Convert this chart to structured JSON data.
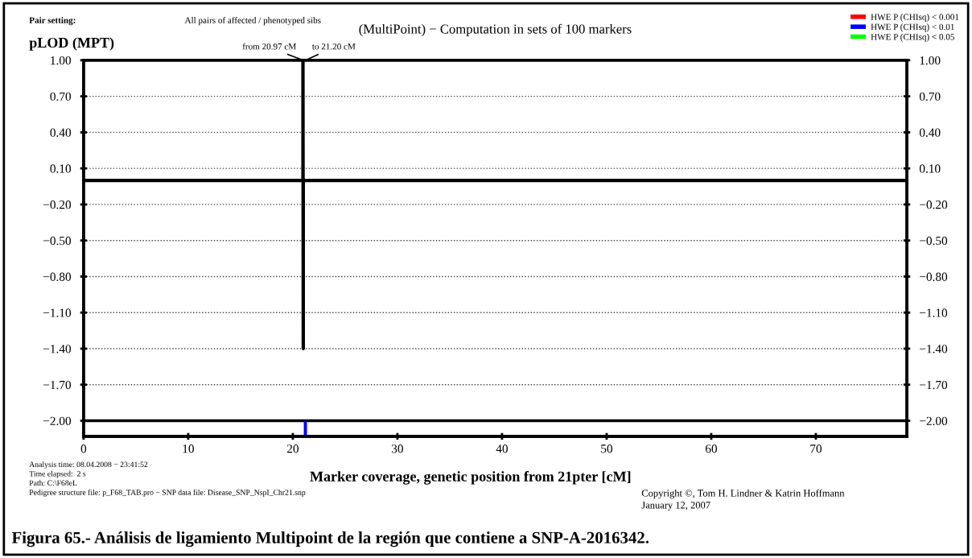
{
  "chart_data": {
    "type": "line",
    "title": "(MultiPoint) − Computation in sets of 100 markers",
    "ylabel": "pLOD (MPT)",
    "xlabel": "Marker coverage, genetic position from 21pter [cM]",
    "xlim": [
      0,
      78.7
    ],
    "xticks": [
      0,
      10,
      20,
      30,
      40,
      50,
      60,
      70
    ],
    "ylim": [
      -2.13,
      1.0
    ],
    "yticks": [
      {
        "value": 1.0,
        "label": "1.00"
      },
      {
        "value": 0.7,
        "label": "0.70"
      },
      {
        "value": 0.4,
        "label": "0.40"
      },
      {
        "value": 0.1,
        "label": "0.10"
      },
      {
        "value": -0.2,
        "label": "−0.20"
      },
      {
        "value": -0.5,
        "label": "−0.50"
      },
      {
        "value": -0.8,
        "label": "−0.80"
      },
      {
        "value": -1.1,
        "label": "−1.10"
      },
      {
        "value": -1.4,
        "label": "−1.40"
      },
      {
        "value": -1.7,
        "label": "−1.70"
      },
      {
        "value": -2.0,
        "label": "−2.00"
      }
    ],
    "y2lim": [
      -2.13,
      1.0
    ],
    "y2ticks": [
      {
        "value": 1.0,
        "label": "1.00"
      },
      {
        "value": 0.7,
        "label": "0.70"
      },
      {
        "value": 0.4,
        "label": "0.40"
      },
      {
        "value": 0.1,
        "label": "0.10"
      },
      {
        "value": -0.2,
        "label": "−0.20"
      },
      {
        "value": -0.5,
        "label": "−0.50"
      },
      {
        "value": -0.8,
        "label": "−0.80"
      },
      {
        "value": -1.1,
        "label": "−1.10"
      },
      {
        "value": -1.4,
        "label": "−1.40"
      },
      {
        "value": -1.7,
        "label": "−1.70"
      },
      {
        "value": -2.0,
        "label": "−2.00"
      }
    ],
    "grid": "y",
    "legend": "top right",
    "marker": "none",
    "line_style": "solid",
    "series": [
      {
        "color": "#000000",
        "x": [
          0,
          20.97,
          20.97,
          21.0,
          21.0,
          78.7
        ],
        "values": [
          0,
          0,
          1.0,
          -1.4,
          0,
          0
        ]
      },
      {
        "type": "bar",
        "name": "HWE P (CHIsq) < 0.001",
        "color": "#ff0000"
      },
      {
        "type": "bar",
        "name": "HWE P (CHIsq) < 0.01",
        "color": "#0000ff",
        "x": [
          21.2
        ],
        "base": [
          -2.13
        ],
        "values": [
          0.13
        ]
      },
      {
        "type": "bar",
        "name": "HWE P (CHIsq) < 0.05",
        "color": "#00ff00"
      }
    ],
    "ref_lines": [
      {
        "axis": "y",
        "value": -2.0,
        "label": null,
        "color": "#000000",
        "line_style": "solid"
      }
    ],
    "annotations": [
      {
        "text": "from 20.97 cM",
        "x": 20.97,
        "y": 1.0
      },
      {
        "text": "to 21.20 cM",
        "x": 21.2,
        "y": 1.0
      },
      "Pair setting:",
      "All pairs of affected / phenotyped sibs",
      "Analysis time: 08.04.2008 − 23:41:52\nTime elapsed:  2 s\nPath: C:\\F68eL\nPedigree structure file: p_F68_TAB.pro − SNP data file: Disease_SNP_NspI_Chr21.snp",
      "Copyright ©, Tom H. Lindner & Katrin Hoffmann\nJanuary 12, 2007",
      "Figura 65.- Análisis de ligamiento Multipoint de la región que contiene a SNP-A-2016342."
    ]
  }
}
